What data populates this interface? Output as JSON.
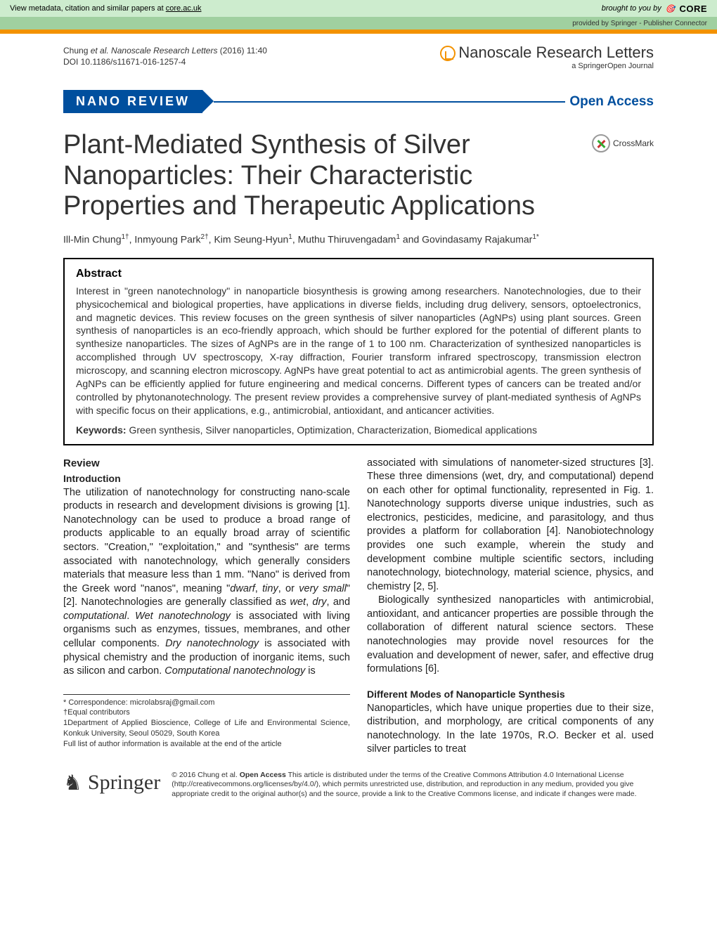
{
  "core_banner": {
    "left_prefix": "View metadata, citation and similar papers at ",
    "left_link": "core.ac.uk",
    "right_prefix": "brought to you by",
    "logo_text": "CORE"
  },
  "core_provider": {
    "text": "provided by Springer - Publisher Connector"
  },
  "citation": {
    "line1_prefix": "Chung ",
    "line1_italic": "et al. Nanoscale Research Letters",
    "line1_suffix": " (2016) 11:40",
    "line2": "DOI 10.1186/s11671-016-1257-4"
  },
  "journal_logo": {
    "main": "Nanoscale Research Letters",
    "sub": "a SpringerOpen Journal"
  },
  "banner": {
    "review_label": "NANO REVIEW",
    "open_access": "Open Access"
  },
  "title": "Plant-Mediated Synthesis of Silver Nanoparticles: Their Characteristic Properties and Therapeutic Applications",
  "crossmark_text": "CrossMark",
  "authors_html": "Ill-Min Chung<sup>1†</sup>, Inmyoung Park<sup>2†</sup>, Kim Seung-Hyun<sup>1</sup>, Muthu Thiruvengadam<sup>1</sup> and Govindasamy Rajakumar<sup>1*</sup>",
  "abstract": {
    "heading": "Abstract",
    "text": "Interest in \"green nanotechnology\" in nanoparticle biosynthesis is growing among researchers. Nanotechnologies, due to their physicochemical and biological properties, have applications in diverse fields, including drug delivery, sensors, optoelectronics, and magnetic devices. This review focuses on the green synthesis of silver nanoparticles (AgNPs) using plant sources. Green synthesis of nanoparticles is an eco-friendly approach, which should be further explored for the potential of different plants to synthesize nanoparticles. The sizes of AgNPs are in the range of 1 to 100 nm. Characterization of synthesized nanoparticles is accomplished through UV spectroscopy, X-ray diffraction, Fourier transform infrared spectroscopy, transmission electron microscopy, and scanning electron microscopy. AgNPs have great potential to act as antimicrobial agents. The green synthesis of AgNPs can be efficiently applied for future engineering and medical concerns. Different types of cancers can be treated and/or controlled by phytonanotechnology. The present review provides a comprehensive survey of plant-mediated synthesis of AgNPs with specific focus on their applications, e.g., antimicrobial, antioxidant, and anticancer activities.",
    "keywords_label": "Keywords:",
    "keywords_text": " Green synthesis, Silver nanoparticles, Optimization, Characterization, Biomedical applications"
  },
  "body": {
    "review_heading": "Review",
    "intro_heading": "Introduction",
    "col1_p1a": "The utilization of nanotechnology for constructing nano-scale products in research and development divisions is growing [1]. Nanotechnology can be used to produce a broad range of products applicable to an equally broad array of scientific sectors. \"Creation,\" \"exploitation,\" and \"synthesis\" are terms associated with nanotechnology, which generally considers materials that measure less than 1 mm. \"Nano\" is derived from the Greek word \"nanos\", meaning \"",
    "col1_p1_italic1": "dwarf",
    "col1_p1b": ", ",
    "col1_p1_italic2": "tiny",
    "col1_p1c": ", or ",
    "col1_p1_italic3": "very small",
    "col1_p1d": "\" [2]. Nanotechnologies are generally classified as ",
    "col1_p1_italic4": "wet",
    "col1_p1e": ", ",
    "col1_p1_italic5": "dry",
    "col1_p1f": ", and ",
    "col1_p1_italic6": "computational",
    "col1_p1g": ". ",
    "col1_p1_italic7": "Wet nanotechnology",
    "col1_p1h": " is associated with living organisms such as enzymes, tissues, membranes, and other cellular components. ",
    "col1_p1_italic8": "Dry nanotechnology",
    "col1_p1i": " is associated with physical chemistry and the production of inorganic items, such as silicon and carbon. ",
    "col1_p1_italic9": "Computational nanotechnology",
    "col1_p1j": " is",
    "col2_p1": "associated with simulations of nanometer-sized structures [3]. These three dimensions (wet, dry, and computational) depend on each other for optimal functionality, represented in Fig. 1. Nanotechnology supports diverse unique industries, such as electronics, pesticides, medicine, and parasitology, and thus provides a platform for collaboration [4]. Nanobiotechnology provides one such example, wherein the study and development combine multiple scientific sectors, including nanotechnology, biotechnology, material science, physics, and chemistry [2, 5].",
    "col2_p2": "Biologically synthesized nanoparticles with antimicrobial, antioxidant, and anticancer properties are possible through the collaboration of different natural science sectors. These nanotechnologies may provide novel resources for the evaluation and development of newer, safer, and effective drug formulations [6].",
    "col2_h2": "Different Modes of Nanoparticle Synthesis",
    "col2_p3": "Nanoparticles, which have unique properties due to their size, distribution, and morphology, are critical components of any nanotechnology. In the late 1970s, R.O. Becker et al. used silver particles to treat"
  },
  "correspondence": {
    "line1": "* Correspondence: microlabsraj@gmail.com",
    "line2": "†Equal contributors",
    "line3": "1Department of Applied Bioscience, College of Life and Environmental Science, Konkuk University, Seoul 05029, South Korea",
    "line4": "Full list of author information is available at the end of the article"
  },
  "springer": {
    "logo_text": "Springer"
  },
  "license": {
    "text_prefix": "© 2016 Chung et al. ",
    "bold": "Open Access",
    "text_suffix": " This article is distributed under the terms of the Creative Commons Attribution 4.0 International License (http://creativecommons.org/licenses/by/4.0/), which permits unrestricted use, distribution, and reproduction in any medium, provided you give appropriate credit to the original author(s) and the source, provide a link to the Creative Commons license, and indicate if changes were made."
  },
  "colors": {
    "core_bg": "#cdecce",
    "orange": "#f39200",
    "blue": "#004f9e"
  }
}
